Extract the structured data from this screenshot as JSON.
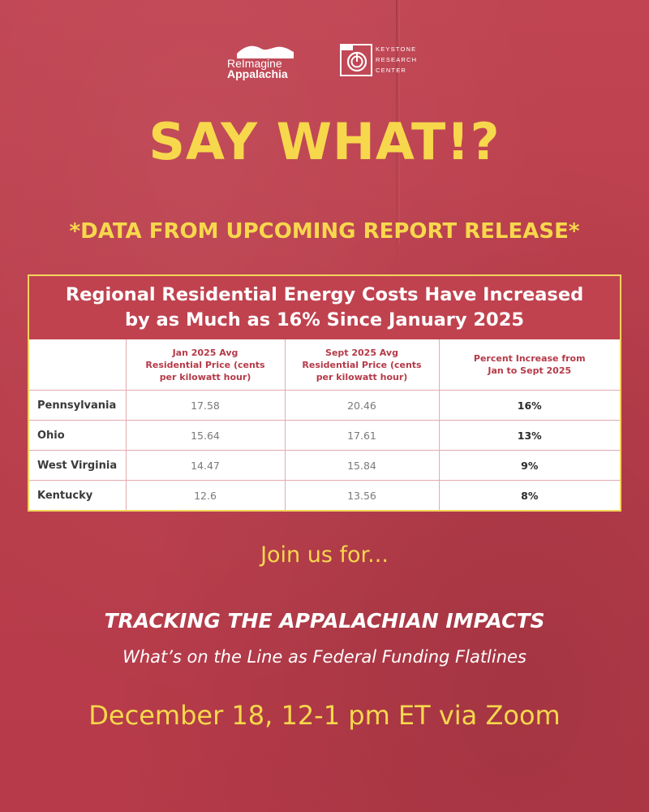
{
  "logos": {
    "reimagine": {
      "line1": "ReImagine",
      "line2": "Appalachia"
    },
    "keystone": {
      "line1": "KEYSTONE",
      "line2": "RESEARCH",
      "line3": "CENTER"
    }
  },
  "headline": "SAY WHAT!?",
  "subheadline": "*DATA FROM UPCOMING REPORT RELEASE*",
  "table": {
    "title_line1": "Regional Residential Energy Costs Have Increased",
    "title_line2": "by as Much as 16% Since January 2025",
    "headers": {
      "state": "",
      "jan_line1": "Jan 2025 Avg",
      "jan_line2": "Residential Price (cents",
      "jan_line3": "per kilowatt hour)",
      "sept_line1": "Sept 2025 Avg",
      "sept_line2": "Residential Price (cents",
      "sept_line3": "per kilowatt hour)",
      "pct_line1": "Percent Increase from",
      "pct_line2": "Jan to Sept 2025"
    },
    "rows": [
      {
        "state": "Pennsylvania",
        "jan": "17.58",
        "sept": "20.46",
        "pct": "16%"
      },
      {
        "state": "Ohio",
        "jan": "15.64",
        "sept": "17.61",
        "pct": "13%"
      },
      {
        "state": "West Virginia",
        "jan": "14.47",
        "sept": "15.84",
        "pct": "9%"
      },
      {
        "state": "Kentucky",
        "jan": "12.6",
        "sept": "13.56",
        "pct": "8%"
      }
    ]
  },
  "join_text": "Join us for...",
  "event": {
    "title": "TRACKING THE APPALACHIAN IMPACTS",
    "subtitle": "What’s on the Line as Federal Funding Flatlines",
    "datetime": "December 18, 12-1 pm ET via Zoom"
  },
  "colors": {
    "background": "#bd3e4b",
    "accent_yellow": "#f7d84c",
    "table_header": "#c0424f",
    "text_white": "#ffffff"
  }
}
